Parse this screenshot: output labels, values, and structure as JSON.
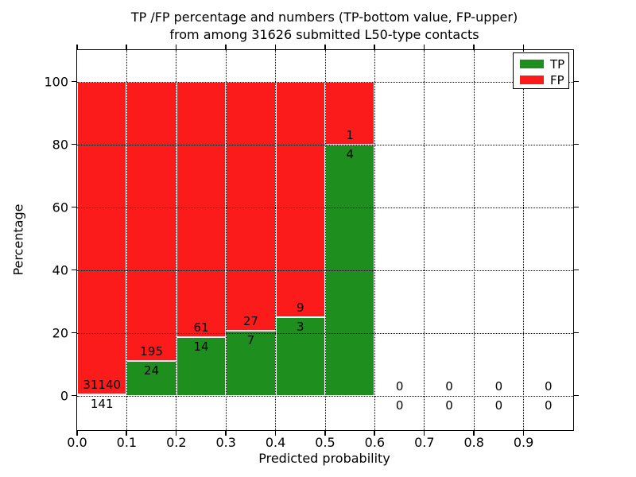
{
  "figure": {
    "title_line1": "TP /FP percentage and numbers (TP-bottom value, FP-upper)",
    "title_line2": "from among 31626 submitted L50-type contacts"
  },
  "legend": {
    "items": [
      {
        "label": "TP",
        "color": "#1e8f1e"
      },
      {
        "label": "FP",
        "color": "#fb1b1b"
      }
    ]
  },
  "chart_data": {
    "type": "bar",
    "stacked": true,
    "normalized_to_percent": true,
    "title": "TP /FP percentage and numbers (TP-bottom value, FP-upper)\nfrom among 31626 submitted L50-type contacts",
    "xlabel": "Predicted probability",
    "ylabel": "Percentage",
    "total_submitted_contacts": 31626,
    "bin_start": [
      0.0,
      0.1,
      0.2,
      0.3,
      0.4,
      0.5,
      0.6,
      0.7,
      0.8,
      0.9
    ],
    "bin_width": 0.1,
    "series": [
      {
        "name": "TP",
        "color": "#1e8f1e",
        "counts": [
          141,
          24,
          14,
          7,
          3,
          4,
          0,
          0,
          0,
          0
        ],
        "labels": [
          "141",
          "24",
          "14",
          "7",
          "3",
          "4",
          "0",
          "0",
          "0",
          "0"
        ]
      },
      {
        "name": "FP",
        "color": "#fb1b1b",
        "counts": [
          31140,
          195,
          61,
          27,
          9,
          1,
          0,
          0,
          0,
          0
        ],
        "labels": [
          "31140",
          "195",
          "61",
          "27",
          "9",
          "1",
          "0",
          "0",
          "0",
          "0"
        ]
      }
    ],
    "tp_percent_by_bin": [
      0.45,
      10.96,
      18.67,
      20.59,
      25.0,
      80.0,
      null,
      null,
      null,
      null
    ],
    "bar_total_percent": 100,
    "xticks": [
      "0.0",
      "0.1",
      "0.2",
      "0.3",
      "0.4",
      "0.5",
      "0.6",
      "0.7",
      "0.8",
      "0.9"
    ],
    "yticks": [
      "0",
      "20",
      "40",
      "60",
      "80",
      "100"
    ],
    "xlim": [
      0.0,
      1.0
    ],
    "ylim": [
      -11,
      110
    ],
    "grid": true,
    "grid_style": "dotted",
    "legend_position": "upper right"
  }
}
